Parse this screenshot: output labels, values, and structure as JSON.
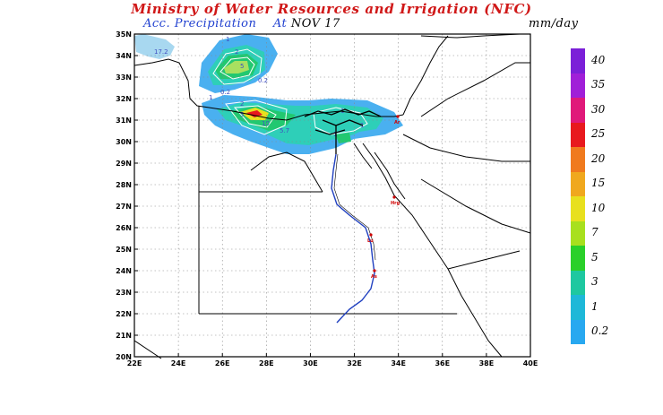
{
  "header": {
    "title": "Ministry of Water Resources and Irrigation (NFC)",
    "subtitle": "Acc. Precipitation",
    "at_label": "At",
    "date": "NOV 17",
    "units": "mm/day"
  },
  "map": {
    "lat_labels": [
      "35N",
      "34N",
      "33N",
      "32N",
      "31N",
      "30N",
      "29N",
      "28N",
      "27N",
      "26N",
      "25N",
      "24N",
      "23N",
      "22N",
      "21N",
      "20N"
    ],
    "lon_labels": [
      "22E",
      "24E",
      "26E",
      "28E",
      "30E",
      "32E",
      "34E",
      "36E",
      "38E",
      "40E"
    ],
    "contour_labels": [
      "17.2",
      "1",
      "2",
      "5",
      "0.2",
      "0.2",
      "1",
      "2",
      "5",
      "10",
      "5.7",
      "1",
      "1",
      "1"
    ],
    "cities": [
      "Ar",
      "Hrg",
      "Lu",
      "As"
    ]
  },
  "colorbar": {
    "levels": [
      "40",
      "35",
      "30",
      "25",
      "20",
      "15",
      "10",
      "7",
      "5",
      "3",
      "1",
      "0.2"
    ],
    "colors": [
      "#7b1fd8",
      "#a01fd8",
      "#e0197a",
      "#e8191e",
      "#f07a1e",
      "#f0a81e",
      "#e8e01e",
      "#a8e01e",
      "#2ad02a",
      "#1ec8a0",
      "#1eb8d8",
      "#28a8f0"
    ]
  }
}
